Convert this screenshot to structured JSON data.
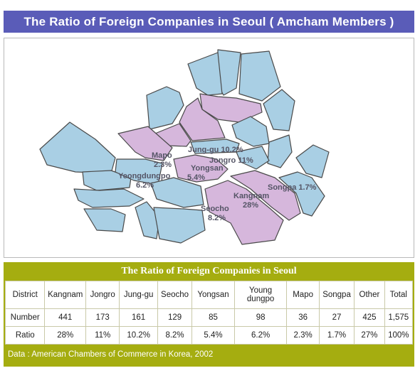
{
  "title": "The Ratio of Foreign Companies in Seoul ( Amcham Members )",
  "map": {
    "labels": {
      "mapo": {
        "name": "Mapo",
        "ratio": "2.3%"
      },
      "jung_gu": {
        "text": "Jung-gu 10.2%"
      },
      "jongro": {
        "text": "Jongro 11%"
      },
      "yongsan": {
        "name": "Yongsan",
        "ratio": "5.4%"
      },
      "yeongdungpo": {
        "name": "Yeongdungpo",
        "ratio": "6.2%"
      },
      "songpa": {
        "text": "Songpa 1.7%"
      },
      "kangnam": {
        "name": "Kangnam",
        "ratio": "28%"
      },
      "seocho": {
        "name": "Seocho",
        "ratio": "8.2%"
      }
    },
    "colors": {
      "highlight": "#d6b7dc",
      "normal": "#a9cfe4",
      "outline": "#4a4a4a"
    }
  },
  "table": {
    "title": "The Ratio of Foreign Companies in Seoul",
    "headers": [
      "District",
      "Kangnam",
      "Jongro",
      "Jung-gu",
      "Seocho",
      "Yongsan",
      "Young dungpo",
      "Mapo",
      "Songpa",
      "Other",
      "Total"
    ],
    "rows": [
      [
        "Number",
        "441",
        "173",
        "161",
        "129",
        "85",
        "98",
        "36",
        "27",
        "425",
        "1,575"
      ],
      [
        "Ratio",
        "28%",
        "11%",
        "10.2%",
        "8.2%",
        "5.4%",
        "6.2%",
        "2.3%",
        "1.7%",
        "27%",
        "100%"
      ]
    ],
    "footnote": "Data : American Chambers of Commerce in Korea, 2002"
  },
  "colors": {
    "title_bar": "#5a5cb8",
    "table_band": "#a5ad10"
  }
}
